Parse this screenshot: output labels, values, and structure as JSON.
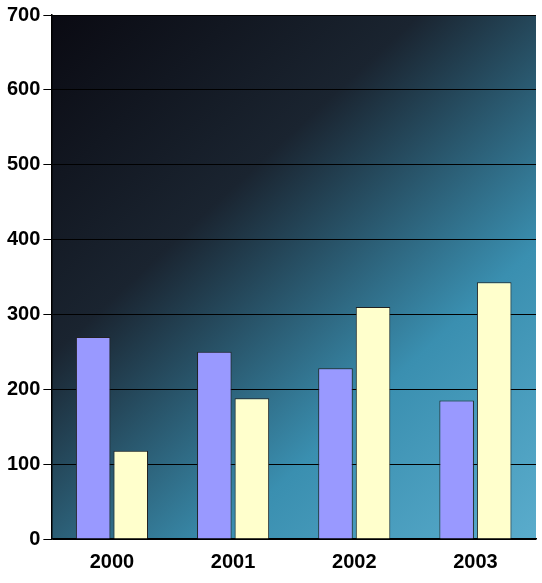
{
  "chart_data": {
    "type": "bar",
    "categories": [
      "2000",
      "2001",
      "2002",
      "2003"
    ],
    "series": [
      {
        "color": "#9999ff",
        "values": [
          270,
          250,
          228,
          185
        ]
      },
      {
        "color": "#ffffcc",
        "values": [
          118,
          188,
          310,
          343
        ]
      }
    ],
    "ylim": [
      0,
      700
    ],
    "yticks": [
      0,
      100,
      200,
      300,
      400,
      500,
      600,
      700
    ],
    "grid": true
  }
}
